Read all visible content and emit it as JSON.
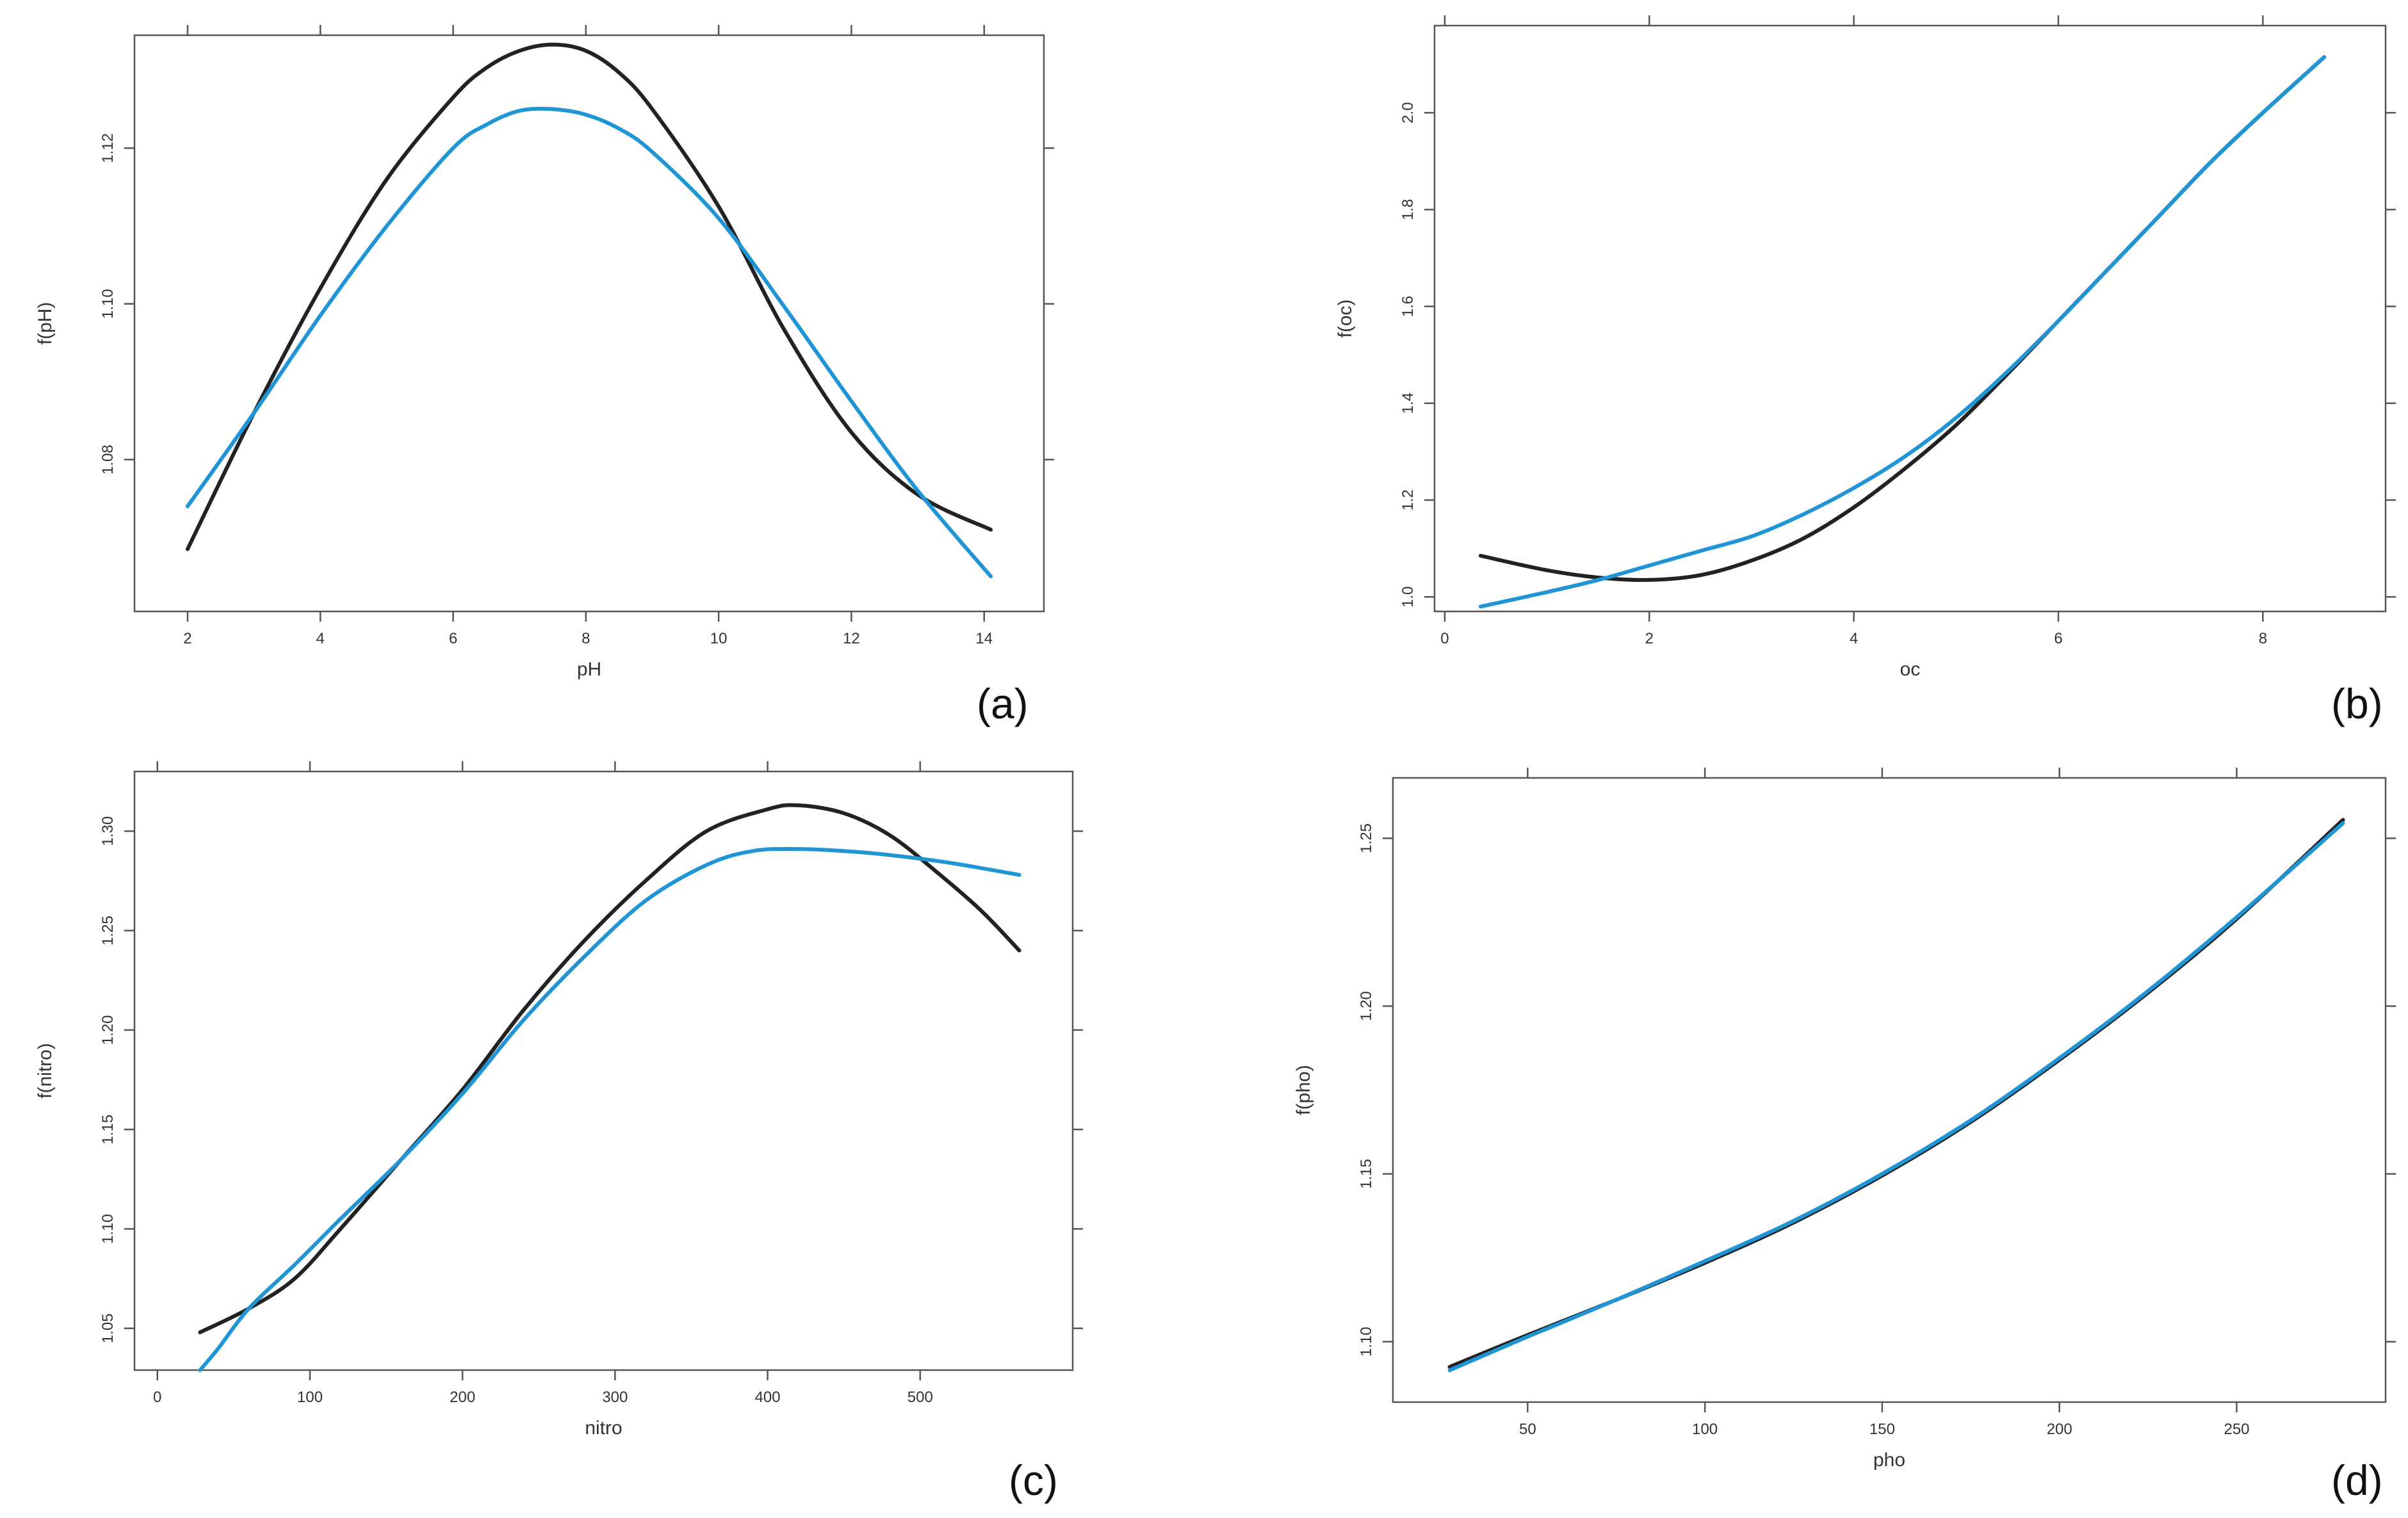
{
  "colors": {
    "black_series": "#222222",
    "blue_series": "#1f95d6"
  },
  "chart_data": [
    {
      "type": "line",
      "panel": "(a)",
      "xlabel": "pH",
      "ylabel": "f(pH)",
      "xlim": [
        1.2,
        14.9
      ],
      "ylim": [
        1.0605,
        1.1345
      ],
      "xticks": [
        2,
        4,
        6,
        8,
        10,
        12,
        14
      ],
      "xtick_labels": [
        "2",
        "4",
        "6",
        "8",
        "10",
        "12",
        "14"
      ],
      "yticks": [
        1.08,
        1.1,
        1.12
      ],
      "ytick_labels": [
        "1.08",
        "1.10",
        "1.12"
      ],
      "series": [
        {
          "name": "black",
          "color": "#222222",
          "x": [
            2,
            3,
            4,
            5,
            6,
            6.5,
            7,
            7.5,
            8,
            8.5,
            9,
            10,
            11,
            12,
            13,
            14.1
          ],
          "y": [
            1.0685,
            1.086,
            1.102,
            1.116,
            1.1265,
            1.1303,
            1.1325,
            1.1333,
            1.1325,
            1.1297,
            1.125,
            1.1125,
            1.0965,
            1.0835,
            1.0755,
            1.071
          ]
        },
        {
          "name": "blue",
          "color": "#1f95d6",
          "x": [
            2,
            3,
            4,
            5,
            6,
            6.5,
            7,
            7.5,
            8,
            8.5,
            9,
            10,
            11,
            12,
            13,
            14.1
          ],
          "y": [
            1.074,
            1.086,
            1.0985,
            1.11,
            1.12,
            1.123,
            1.1248,
            1.125,
            1.1243,
            1.1225,
            1.1195,
            1.111,
            1.0995,
            1.0875,
            1.076,
            1.065
          ]
        }
      ]
    },
    {
      "type": "line",
      "panel": "(b)",
      "xlabel": "oc",
      "ylabel": "f(oc)",
      "xlim": [
        -0.1,
        9.2
      ],
      "ylim": [
        0.97,
        2.18
      ],
      "xticks": [
        0,
        2,
        4,
        6,
        8
      ],
      "xtick_labels": [
        "0",
        "2",
        "4",
        "6",
        "8"
      ],
      "yticks": [
        1.0,
        1.2,
        1.4,
        1.6,
        1.8,
        2.0
      ],
      "ytick_labels": [
        "1.0",
        "1.2",
        "1.4",
        "1.6",
        "1.8",
        "2.0"
      ],
      "series": [
        {
          "name": "black",
          "color": "#222222",
          "x": [
            0.35,
            1,
            1.5,
            2,
            2.5,
            3,
            3.5,
            4,
            4.5,
            5,
            5.5,
            6,
            6.5,
            7,
            7.5,
            8,
            8.6
          ],
          "y": [
            1.085,
            1.055,
            1.04,
            1.035,
            1.045,
            1.075,
            1.12,
            1.185,
            1.265,
            1.355,
            1.46,
            1.57,
            1.68,
            1.79,
            1.9,
            2.0,
            2.115
          ]
        },
        {
          "name": "blue",
          "color": "#1f95d6",
          "x": [
            0.35,
            1,
            1.5,
            2,
            2.5,
            3,
            3.5,
            4,
            4.5,
            5,
            5.5,
            6,
            6.5,
            7,
            7.5,
            8,
            8.6
          ],
          "y": [
            0.98,
            1.01,
            1.035,
            1.065,
            1.095,
            1.125,
            1.17,
            1.225,
            1.29,
            1.37,
            1.465,
            1.57,
            1.68,
            1.79,
            1.9,
            2.0,
            2.115
          ]
        }
      ]
    },
    {
      "type": "line",
      "panel": "(c)",
      "xlabel": "nitro",
      "ylabel": "f(nitro)",
      "xlim": [
        -15,
        600
      ],
      "ylim": [
        1.029,
        1.33
      ],
      "xticks": [
        0,
        100,
        200,
        300,
        400,
        500
      ],
      "xtick_labels": [
        "0",
        "100",
        "200",
        "300",
        "400",
        "500"
      ],
      "yticks": [
        1.05,
        1.1,
        1.15,
        1.2,
        1.25,
        1.3
      ],
      "ytick_labels": [
        "1.05",
        "1.10",
        "1.15",
        "1.20",
        "1.25",
        "1.30"
      ],
      "series": [
        {
          "name": "black",
          "color": "#222222",
          "x": [
            28,
            60,
            90,
            120,
            160,
            200,
            240,
            280,
            320,
            360,
            400,
            420,
            450,
            480,
            510,
            540,
            565
          ],
          "y": [
            1.048,
            1.06,
            1.075,
            1.1,
            1.135,
            1.17,
            1.21,
            1.245,
            1.275,
            1.3,
            1.311,
            1.313,
            1.309,
            1.298,
            1.28,
            1.26,
            1.24
          ]
        },
        {
          "name": "blue",
          "color": "#1f95d6",
          "x": [
            28,
            40,
            60,
            90,
            120,
            160,
            200,
            240,
            280,
            320,
            360,
            390,
            420,
            450,
            480,
            520,
            565
          ],
          "y": [
            1.029,
            1.04,
            1.06,
            1.082,
            1.105,
            1.135,
            1.168,
            1.205,
            1.237,
            1.265,
            1.283,
            1.29,
            1.291,
            1.29,
            1.288,
            1.284,
            1.278
          ]
        }
      ]
    },
    {
      "type": "line",
      "panel": "(d)",
      "xlabel": "pho",
      "ylabel": "f(pho)",
      "xlim": [
        12,
        292
      ],
      "ylim": [
        1.082,
        1.268
      ],
      "xticks": [
        50,
        100,
        150,
        200,
        250
      ],
      "xtick_labels": [
        "50",
        "100",
        "150",
        "200",
        "250"
      ],
      "yticks": [
        1.1,
        1.15,
        1.2,
        1.25
      ],
      "ytick_labels": [
        "1.10",
        "1.15",
        "1.20",
        "1.25"
      ],
      "series": [
        {
          "name": "black",
          "color": "#222222",
          "x": [
            28,
            50,
            75,
            100,
            125,
            150,
            175,
            200,
            225,
            250,
            280
          ],
          "y": [
            1.0925,
            1.102,
            1.1125,
            1.1235,
            1.1355,
            1.1495,
            1.1655,
            1.184,
            1.204,
            1.226,
            1.2555
          ]
        },
        {
          "name": "blue",
          "color": "#1f95d6",
          "x": [
            28,
            50,
            75,
            100,
            125,
            150,
            175,
            200,
            225,
            250,
            280
          ],
          "y": [
            1.0915,
            1.1015,
            1.1125,
            1.124,
            1.136,
            1.15,
            1.166,
            1.1845,
            1.2045,
            1.2265,
            1.2545
          ]
        }
      ]
    }
  ]
}
